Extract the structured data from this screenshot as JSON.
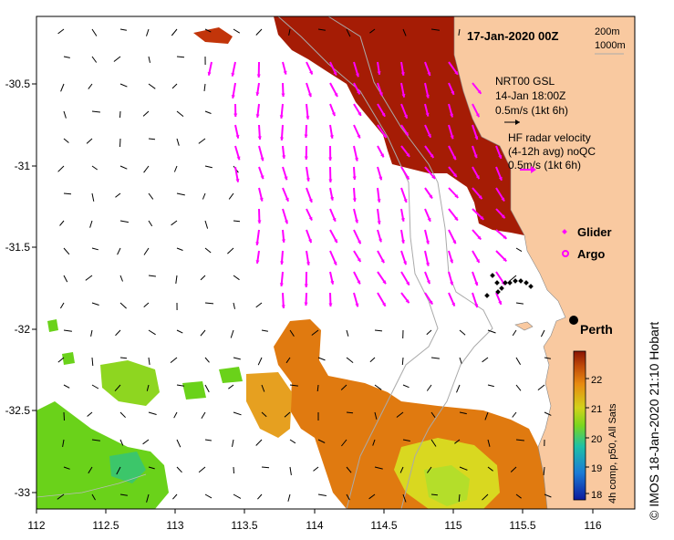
{
  "title": "17-Jan-2020 00Z",
  "depth_legend": [
    "200m",
    "1000m"
  ],
  "nrt_legend": {
    "line1": "NRT00 GSL",
    "line2": "14-Jan 18:00Z",
    "line3": "0.5m/s (1kt 6h)"
  },
  "hf_legend": {
    "line1": "HF radar velocity",
    "line2": "(4-12h avg) noQC",
    "line3": "0.5m/s (1kt 6h)"
  },
  "glider_label": "Glider",
  "argo_label": "Argo",
  "city_label": "Perth",
  "colorbar": {
    "label": "4h comp, p50, All Sats",
    "ticks": [
      18,
      19,
      20,
      21,
      22
    ]
  },
  "credit": "© IMOS 18-Jan-2020 21:10 Hobart",
  "colors": {
    "land": "#f9c9a0",
    "radar_arrows": "#ff00ff",
    "model_arrows": "#000000",
    "warm_sst": "#a51c05",
    "mid_sst": "#e07a10",
    "cool_sst": "#6ad21a"
  },
  "chart_data": {
    "type": "heatmap",
    "x_axis_ticks": [
      "112",
      "112.5",
      "113",
      "113.5",
      "114",
      "114.5",
      "115",
      "115.5",
      "116"
    ],
    "y_axis_ticks": [
      "-30.5",
      "-31",
      "-31.5",
      "-32",
      "-32.5",
      "-33"
    ],
    "xlim": [
      112,
      116.3
    ],
    "ylim": [
      -33.1,
      -30.05
    ],
    "color_scale_range": [
      17.8,
      22.8
    ],
    "perth_location": [
      115.86,
      -31.95
    ]
  }
}
